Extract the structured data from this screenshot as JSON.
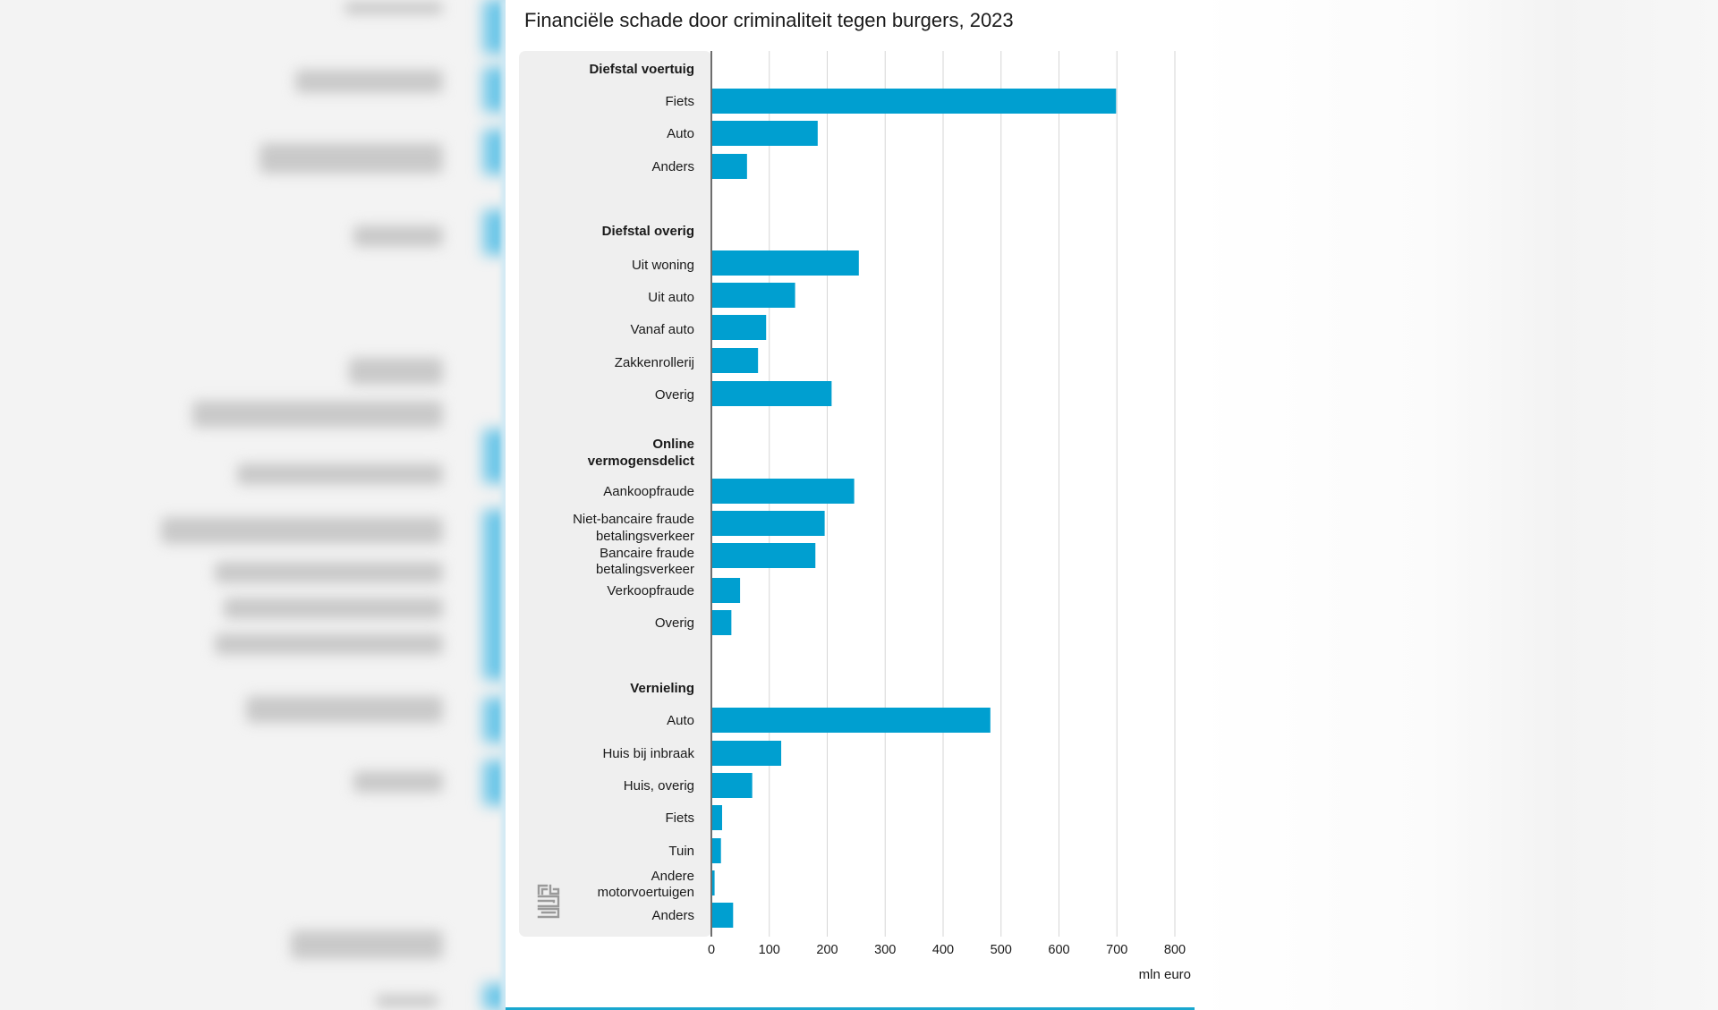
{
  "chart_data": {
    "type": "bar",
    "orientation": "horizontal",
    "title": "Financiële schade door criminaliteit tegen burgers, 2023",
    "unit_label": "mln euro",
    "xlim": [
      0,
      800
    ],
    "xticks": [
      0,
      100,
      200,
      300,
      400,
      500,
      600,
      700,
      800
    ],
    "grid": true,
    "bar_color": "#009fd0",
    "groups": [
      {
        "name": "Diefstal voertuig",
        "items": [
          {
            "label": "Fiets",
            "value": 697
          },
          {
            "label": "Auto",
            "value": 182
          },
          {
            "label": "Anders",
            "value": 60
          }
        ]
      },
      {
        "name": "Diefstal overig",
        "items": [
          {
            "label": "Uit woning",
            "value": 253
          },
          {
            "label": "Uit auto",
            "value": 143
          },
          {
            "label": "Vanaf auto",
            "value": 93
          },
          {
            "label": "Zakkenrollerij",
            "value": 79
          },
          {
            "label": "Overig",
            "value": 206
          }
        ]
      },
      {
        "name": "Online vermogensdelict",
        "items": [
          {
            "label": "Aankoopfraude",
            "value": 245
          },
          {
            "label": "Niet-bancaire fraude betalingsverkeer",
            "value": 194
          },
          {
            "label": "Bancaire fraude betalingsverkeer",
            "value": 178
          },
          {
            "label": "Verkoopfraude",
            "value": 48
          },
          {
            "label": "Overig",
            "value": 33
          }
        ]
      },
      {
        "name": "Vernieling",
        "items": [
          {
            "label": "Auto",
            "value": 480
          },
          {
            "label": "Huis bij inbraak",
            "value": 119
          },
          {
            "label": "Huis, overig",
            "value": 69
          },
          {
            "label": "Fiets",
            "value": 17
          },
          {
            "label": "Tuin",
            "value": 15
          },
          {
            "label": "Andere motorvoertuigen",
            "value": 4
          },
          {
            "label": "Anders",
            "value": 36
          }
        ]
      }
    ]
  }
}
